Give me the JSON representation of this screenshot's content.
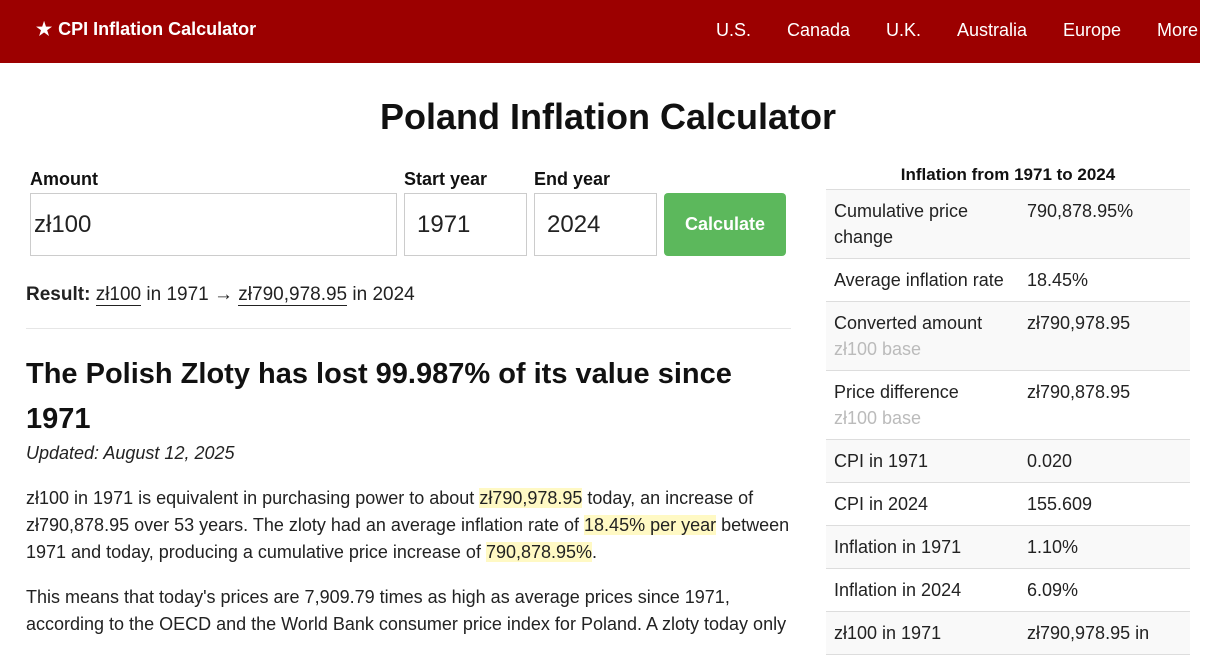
{
  "header": {
    "brand_star": "★",
    "brand": "CPI Inflation Calculator",
    "nav": [
      "U.S.",
      "Canada",
      "U.K.",
      "Australia",
      "Europe",
      "More"
    ]
  },
  "page_title": "Poland Inflation Calculator",
  "form": {
    "amount_label": "Amount",
    "amount_value": "zł100",
    "start_label": "Start year",
    "start_value": "1971",
    "end_label": "End year",
    "end_value": "2024",
    "button": "Calculate"
  },
  "result": {
    "label": "Result:",
    "from_amount": "zł100",
    "from_text": "in 1971",
    "arrow": "→",
    "to_amount": "zł790,978.95",
    "to_text": "in 2024"
  },
  "article": {
    "heading": "The Polish Zloty has lost 99.987% of its value since 1971",
    "updated": "Updated: August 12, 2025",
    "p1": {
      "a": "zł100 in 1971 is equivalent in purchasing power to about ",
      "h1": "zł790,978.95",
      "b": " today, an increase of zł790,878.95 over 53 years. The zloty had an average inflation rate of ",
      "h2": "18.45% per year",
      "c": " between 1971 and today, producing a cumulative price increase of ",
      "h3": "790,878.95%",
      "d": "."
    },
    "p2": "This means that today's prices are 7,909.79 times as high as average prices since 1971, according to the OECD and the World Bank consumer price index for Poland. A zloty today only"
  },
  "sidebar": {
    "title": "Inflation from 1971 to 2024",
    "rows": [
      {
        "k": "Cumulative price change",
        "v": "790,878.95%",
        "sub": ""
      },
      {
        "k": "Average inflation rate",
        "v": "18.45%",
        "sub": ""
      },
      {
        "k": "Converted amount",
        "v": "zł790,978.95",
        "sub": "zł100 base"
      },
      {
        "k": "Price difference",
        "v": "zł790,878.95",
        "sub": "zł100 base"
      },
      {
        "k": "CPI in 1971",
        "v": "0.020",
        "sub": ""
      },
      {
        "k": "CPI in 2024",
        "v": "155.609",
        "sub": ""
      },
      {
        "k": "Inflation in 1971",
        "v": "1.10%",
        "sub": ""
      },
      {
        "k": "Inflation in 2024",
        "v": "6.09%",
        "sub": ""
      },
      {
        "k": "zł100 in 1971",
        "v": "zł790,978.95 in",
        "sub": ""
      }
    ]
  }
}
